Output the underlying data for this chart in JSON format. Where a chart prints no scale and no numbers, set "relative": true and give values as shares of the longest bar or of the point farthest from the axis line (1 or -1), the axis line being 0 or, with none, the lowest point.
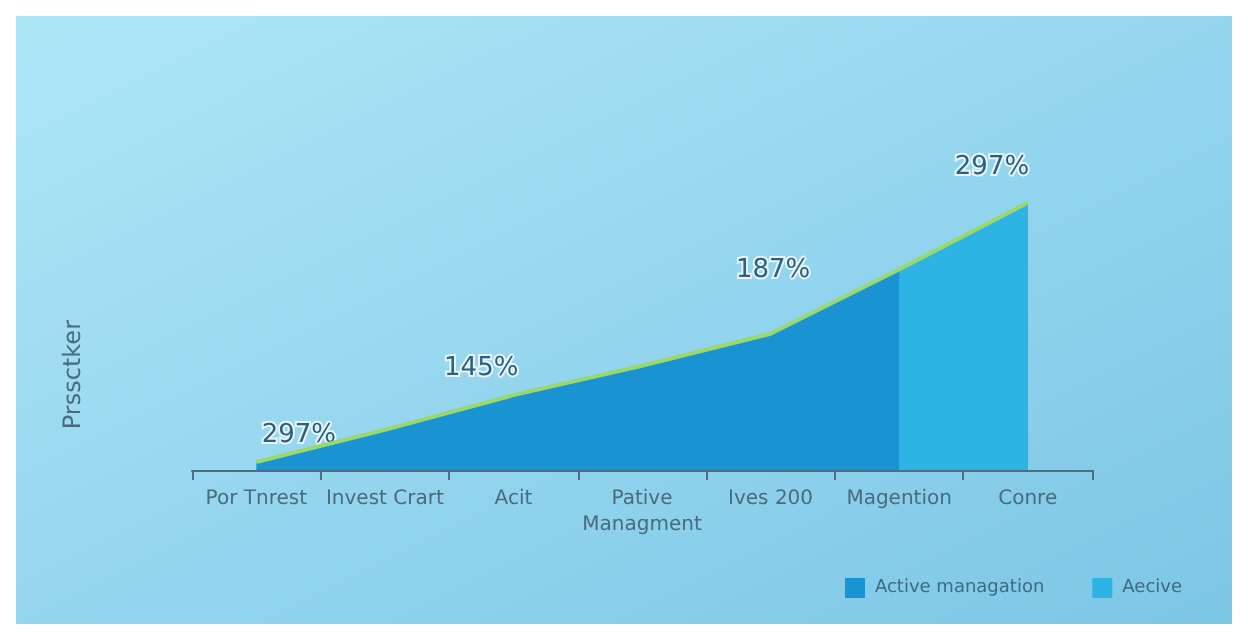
{
  "chart_data": {
    "type": "area",
    "ylabel": "Prssctker",
    "relative": true,
    "categories": [
      "Por Tnrest",
      "Invest Crart",
      "Acit",
      "Pative\nManagment",
      "Ives 200",
      "Magention",
      "Conre"
    ],
    "series": [
      {
        "name": "Active managation",
        "color": "#1a93d3",
        "values": [
          0.03,
          0.15,
          0.28,
          0.39,
          0.51,
          0.75,
          1.0
        ]
      },
      {
        "type": "line",
        "color": "#9ad86a",
        "values": [
          0.03,
          0.15,
          0.28,
          0.39,
          0.51,
          0.75,
          1.0
        ]
      },
      {
        "name": "Aecive",
        "color": "#2db4e4",
        "values": [
          null,
          null,
          null,
          null,
          null,
          0.75,
          1.0
        ]
      }
    ],
    "annotations": [
      "297%",
      "145%",
      "187%",
      "297%"
    ],
    "legend": "bottom right",
    "marker": "none"
  }
}
